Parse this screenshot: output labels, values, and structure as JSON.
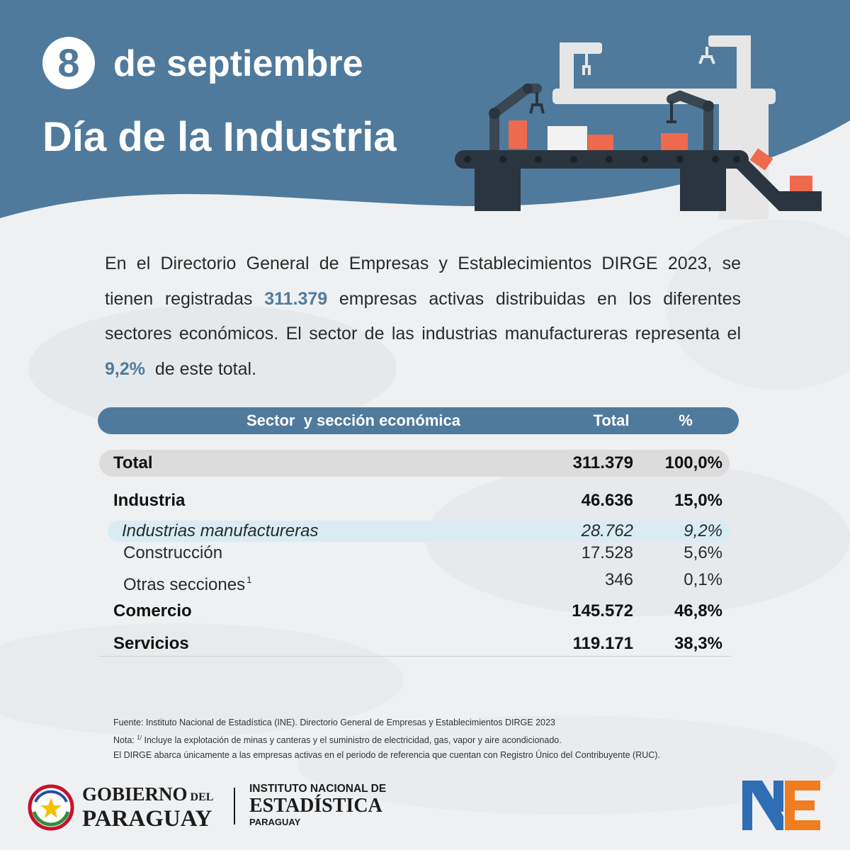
{
  "header": {
    "day": "8",
    "date_text": "de septiembre",
    "title": "Día de la Industria"
  },
  "intro": {
    "part1": "En el Directorio General de Empresas y Establecimientos DIRGE 2023, se tienen registradas ",
    "highlight_total": "311.379",
    "part2": " empresas activas distribuidas en los diferentes sectores económicos. El sector de las industrias manufactureras representa el ",
    "highlight_pct": "9,2%",
    "part3": "  de este total."
  },
  "table": {
    "headers": {
      "sector": "Sector  y sección económica",
      "total": "Total",
      "pct": "%"
    },
    "rows": [
      {
        "label": "Total",
        "total": "311.379",
        "pct": "100,0%"
      },
      {
        "label": "Industria",
        "total": "46.636",
        "pct": "15,0%"
      },
      {
        "label": "Industrias manufactureras",
        "total": "28.762",
        "pct": "9,2%"
      },
      {
        "label": "Construcción",
        "total": "17.528",
        "pct": "5,6%"
      },
      {
        "label": "Otras secciones",
        "footnote": "1",
        "total": "346",
        "pct": "0,1%"
      },
      {
        "label": "Comercio",
        "total": "145.572",
        "pct": "46,8%"
      },
      {
        "label": "Servicios",
        "total": "119.171",
        "pct": "38,3%"
      }
    ]
  },
  "notes": {
    "source": "Fuente: Instituto Nacional de Estadística (INE). Directorio General de Empresas y Establecimientos DIRGE 2023",
    "note_prefix": "Nota: ",
    "note_mark": "1/",
    "note_text": " Incluye la explotación de minas y canteras y el suministro de electricidad, gas, vapor y aire acondicionado.",
    "scope": "El DIRGE abarca únicamente a las empresas activas en el periodo de referencia que cuentan con Registro Único del Contribuyente (RUC)."
  },
  "footer": {
    "gob_line1a": "GOBIERNO",
    "gob_line1b": " DEL",
    "gob_line2": "PARAGUAY",
    "ine_line1": "INSTITUTO NACIONAL DE",
    "ine_line2": "ESTADÍSTICA",
    "ine_line3": "PARAGUAY"
  },
  "colors": {
    "header_blue": "#4f7a9c",
    "highlight_row": "#d9ecf3",
    "total_row": "#dcdcdc",
    "box_orange": "#ee6a4d",
    "ine_blue": "#2f6db5",
    "ine_orange": "#f07d1f"
  },
  "icons": [
    "industrial-machine-illustration",
    "gobierno-seal-icon",
    "ine-logo-icon"
  ]
}
